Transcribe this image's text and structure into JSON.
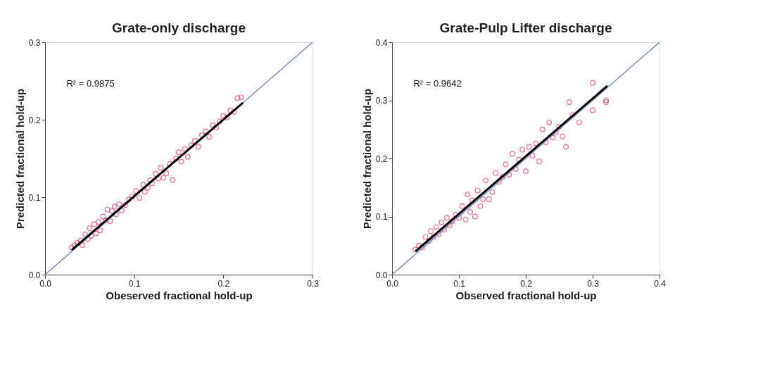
{
  "chart_data": [
    {
      "type": "scatter",
      "title": "Grate-only discharge",
      "xlabel": "Obeserved fractional hold-up",
      "ylabel": "Predicted fractional hold-up",
      "annotations": [
        "R² = 0.9875"
      ],
      "xlim": [
        0,
        0.3
      ],
      "ylim": [
        0,
        0.3
      ],
      "xticks": [
        {
          "value": 0,
          "label": "0.0"
        },
        0.1,
        0.2,
        0.3
      ],
      "yticks": [
        {
          "value": 0,
          "label": "0.0"
        },
        0.1,
        0.2,
        0.3
      ],
      "grid": false,
      "legend": false,
      "series": [
        {
          "type": "scatter",
          "marker": "circle",
          "color": "#e0306f",
          "x": [
            0.03,
            0.033,
            0.036,
            0.04,
            0.042,
            0.045,
            0.048,
            0.05,
            0.052,
            0.055,
            0.057,
            0.06,
            0.062,
            0.065,
            0.068,
            0.07,
            0.073,
            0.075,
            0.078,
            0.08,
            0.083,
            0.086,
            0.09,
            0.094,
            0.098,
            0.102,
            0.106,
            0.11,
            0.112,
            0.115,
            0.118,
            0.12,
            0.124,
            0.127,
            0.13,
            0.133,
            0.136,
            0.14,
            0.143,
            0.147,
            0.15,
            0.153,
            0.157,
            0.16,
            0.164,
            0.168,
            0.172,
            0.176,
            0.18,
            0.184,
            0.188,
            0.192,
            0.196,
            0.2,
            0.204,
            0.208,
            0.212,
            0.216,
            0.22
          ],
          "values": [
            0.035,
            0.038,
            0.041,
            0.044,
            0.038,
            0.052,
            0.046,
            0.06,
            0.05,
            0.065,
            0.053,
            0.068,
            0.057,
            0.075,
            0.07,
            0.084,
            0.069,
            0.082,
            0.088,
            0.078,
            0.091,
            0.083,
            0.09,
            0.097,
            0.101,
            0.108,
            0.099,
            0.116,
            0.107,
            0.112,
            0.122,
            0.118,
            0.13,
            0.124,
            0.138,
            0.125,
            0.131,
            0.143,
            0.122,
            0.15,
            0.158,
            0.146,
            0.162,
            0.152,
            0.167,
            0.173,
            0.165,
            0.18,
            0.185,
            0.178,
            0.193,
            0.19,
            0.198,
            0.205,
            0.203,
            0.212,
            0.21,
            0.228,
            0.229
          ]
        },
        {
          "type": "line",
          "color": "#6b7fb5",
          "x": [
            0,
            0.3
          ],
          "values": [
            0,
            0.3
          ]
        },
        {
          "type": "line",
          "color": "#000000",
          "x": [
            0.03,
            0.222
          ],
          "values": [
            0.032,
            0.222
          ]
        }
      ]
    },
    {
      "type": "scatter",
      "title": "Grate-Pulp Lifter discharge",
      "xlabel": "Observed fractional hold-up",
      "ylabel": "Predicted fractional hold-up",
      "annotations": [
        "R² = 0.9642"
      ],
      "xlim": [
        0,
        0.4
      ],
      "ylim": [
        0,
        0.4
      ],
      "xticks": [
        {
          "value": 0,
          "label": "0.0"
        },
        0.1,
        0.2,
        0.3,
        0.4
      ],
      "yticks": [
        {
          "value": 0,
          "label": "0.0"
        },
        0.1,
        0.2,
        0.3,
        0.4
      ],
      "grid": false,
      "legend": false,
      "series": [
        {
          "type": "scatter",
          "marker": "circle",
          "color": "#e0306f",
          "x": [
            0.035,
            0.04,
            0.045,
            0.05,
            0.055,
            0.058,
            0.062,
            0.066,
            0.07,
            0.074,
            0.078,
            0.082,
            0.086,
            0.09,
            0.095,
            0.1,
            0.105,
            0.11,
            0.113,
            0.117,
            0.12,
            0.124,
            0.128,
            0.132,
            0.136,
            0.14,
            0.145,
            0.15,
            0.155,
            0.16,
            0.165,
            0.17,
            0.175,
            0.18,
            0.185,
            0.19,
            0.195,
            0.2,
            0.205,
            0.21,
            0.215,
            0.22,
            0.225,
            0.23,
            0.235,
            0.24,
            0.245,
            0.25,
            0.255,
            0.26,
            0.265,
            0.27,
            0.28,
            0.3,
            0.3,
            0.32,
            0.32
          ],
          "values": [
            0.043,
            0.05,
            0.047,
            0.065,
            0.058,
            0.075,
            0.065,
            0.082,
            0.07,
            0.09,
            0.078,
            0.098,
            0.085,
            0.092,
            0.103,
            0.098,
            0.118,
            0.095,
            0.138,
            0.108,
            0.128,
            0.1,
            0.145,
            0.118,
            0.13,
            0.162,
            0.13,
            0.142,
            0.175,
            0.16,
            0.168,
            0.19,
            0.172,
            0.208,
            0.182,
            0.198,
            0.215,
            0.178,
            0.22,
            0.205,
            0.226,
            0.195,
            0.25,
            0.228,
            0.262,
            0.236,
            0.245,
            0.255,
            0.238,
            0.22,
            0.297,
            0.275,
            0.262,
            0.33,
            0.283,
            0.3,
            0.297
          ]
        },
        {
          "type": "line",
          "color": "#6b7fb5",
          "x": [
            0,
            0.4
          ],
          "values": [
            0,
            0.4
          ]
        },
        {
          "type": "line",
          "color": "#000000",
          "x": [
            0.035,
            0.322
          ],
          "values": [
            0.04,
            0.325
          ]
        }
      ]
    }
  ]
}
